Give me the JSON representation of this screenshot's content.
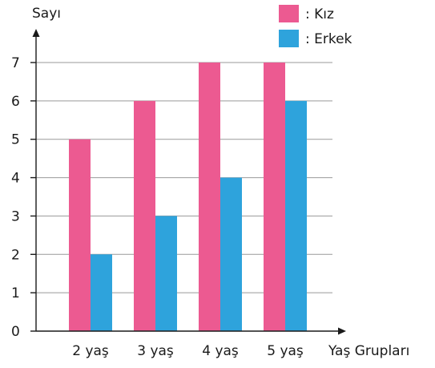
{
  "chart_data": {
    "type": "bar",
    "categories": [
      "2 yaş",
      "3 yaş",
      "4 yaş",
      "5 yaş"
    ],
    "series": [
      {
        "name": ": Kız",
        "values": [
          5,
          6,
          7,
          7
        ],
        "color": "#ec5a91"
      },
      {
        "name": ": Erkek",
        "values": [
          2,
          3,
          4,
          6
        ],
        "color": "#2ea3dc"
      }
    ],
    "xlabel": "Yaş Grupları",
    "ylabel": "Sayı",
    "yticks": [
      0,
      1,
      2,
      3,
      4,
      5,
      6,
      7
    ],
    "ylim": [
      0,
      7
    ],
    "grid": true,
    "legend": "top-right"
  }
}
